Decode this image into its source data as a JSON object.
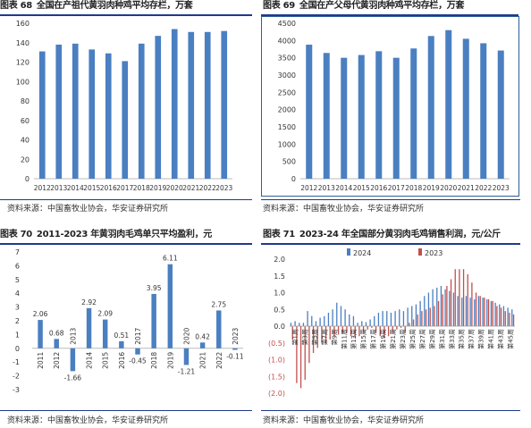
{
  "source_note": "资料来源：中国畜牧业协会，华安证券研究所",
  "chart_data": [
    {
      "id": "fig68",
      "type": "bar",
      "figure_no": "图表 68",
      "title": "全国在产祖代黄羽肉种鸡平均存栏，万套",
      "categories": [
        "2012",
        "2013",
        "2014",
        "2015",
        "2016",
        "2017",
        "2018",
        "2019",
        "2020",
        "2021",
        "2022",
        "2023"
      ],
      "values": [
        131,
        138,
        139,
        133,
        129,
        121,
        139,
        147,
        154,
        151,
        151,
        152
      ],
      "ylim": [
        0,
        160
      ],
      "yticks": [
        0,
        20,
        40,
        60,
        80,
        100,
        120,
        140,
        160
      ],
      "color": "#4a7fc1",
      "grid": false,
      "framed": false
    },
    {
      "id": "fig69",
      "type": "bar",
      "figure_no": "图表 69",
      "title": "全国在产父母代黄羽肉种鸡平均存栏，万套",
      "categories": [
        "2012",
        "2013",
        "2014",
        "2015",
        "2016",
        "2017",
        "2018",
        "2019",
        "2020",
        "2021",
        "2022",
        "2023"
      ],
      "values": [
        3880,
        3640,
        3500,
        3580,
        3690,
        3500,
        3770,
        4130,
        4300,
        4050,
        3920,
        3710
      ],
      "ylim": [
        0,
        4500
      ],
      "yticks": [
        0,
        500,
        1000,
        1500,
        2000,
        2500,
        3000,
        3500,
        4000,
        4500
      ],
      "color": "#4a7fc1",
      "grid": false,
      "framed": true
    },
    {
      "id": "fig70",
      "type": "bar",
      "figure_no": "图表 70",
      "title": "2011-2023 年黄羽肉毛鸡单只平均盈利，元",
      "categories": [
        "2011",
        "2012",
        "2013",
        "2014",
        "2015",
        "2016",
        "2017",
        "2018",
        "2019",
        "2020",
        "2021",
        "2022",
        "2023"
      ],
      "values": [
        2.06,
        0.68,
        -1.66,
        2.92,
        2.09,
        0.51,
        -0.45,
        3.95,
        6.11,
        -1.21,
        0.42,
        2.75,
        -0.11
      ],
      "data_labels": [
        "2.06",
        "0.68",
        "-1.66",
        "2.92",
        "2.09",
        "0.51",
        "-0.45",
        "3.95",
        "6.11",
        "-1.21",
        "0.42",
        "2.75",
        "-0.11"
      ],
      "ylim": [
        -3,
        7
      ],
      "yticks": [
        -3,
        -2,
        -1,
        0,
        1,
        2,
        3,
        4,
        5,
        6,
        7
      ],
      "color": "#4a7fc1",
      "grid": false,
      "framed": false
    },
    {
      "id": "fig71",
      "type": "bar",
      "figure_no": "图表 71",
      "title": "2023-24 年全国部分黄羽肉毛鸡销售利润，元/公斤",
      "x_tick_labels": [
        "第1周",
        "第3周",
        "第5周",
        "第7周",
        "第9周",
        "第11周",
        "第13周",
        "第15周",
        "第17周",
        "第19周",
        "第21周",
        "第23周",
        "第25周",
        "第27周",
        "第29周",
        "第31周",
        "第33周",
        "第35周",
        "第37周",
        "第39周",
        "第41周",
        "第43周",
        "第45周"
      ],
      "ylim": [
        -2.0,
        2.0
      ],
      "yticks": [
        2.0,
        1.5,
        1.0,
        0.5,
        0.0,
        -0.5,
        -1.0,
        -1.5,
        -2.0
      ],
      "ytick_labels": [
        "2.0",
        "1.5",
        "1.0",
        "0.5",
        "0.0",
        "(0.5)",
        "(1.0)",
        "(1.5)",
        "(2.0)"
      ],
      "legend_position": "top",
      "grid": false,
      "framed": false,
      "series": [
        {
          "name": "2024",
          "color": "#4a7fc1",
          "values": [
            0.1,
            0.15,
            0.1,
            0.1,
            0.45,
            0.3,
            0.15,
            0.25,
            0.3,
            0.4,
            0.5,
            0.7,
            0.6,
            0.5,
            0.35,
            0.3,
            0.1,
            0.15,
            0.12,
            0.2,
            0.3,
            0.4,
            0.45,
            0.45,
            0.4,
            0.45,
            0.5,
            0.45,
            0.55,
            0.6,
            0.65,
            0.75,
            0.9,
            1.0,
            1.1,
            1.15,
            1.2,
            1.1,
            1.05,
            1.0,
            0.9,
            0.85,
            0.9,
            0.85,
            0.8,
            0.9,
            0.85,
            0.8,
            0.75,
            0.7,
            0.65,
            0.6,
            0.55,
            0.5
          ]
        },
        {
          "name": "2023",
          "color": "#c0504d",
          "values": [
            -0.4,
            -1.7,
            -1.85,
            -1.6,
            -1.1,
            -0.8,
            -0.65,
            -0.5,
            -0.5,
            -0.4,
            -0.3,
            -0.25,
            -0.2,
            -0.2,
            -0.3,
            -0.35,
            -0.3,
            -0.2,
            -0.1,
            -0.05,
            -0.2,
            -0.3,
            -0.35,
            -0.3,
            -0.2,
            -0.1,
            -0.05,
            -0.2,
            0.1,
            0.2,
            0.35,
            0.45,
            0.5,
            0.55,
            0.6,
            0.75,
            0.95,
            1.2,
            1.4,
            1.7,
            1.7,
            1.7,
            1.55,
            1.3,
            1.0,
            0.9,
            0.85,
            0.8,
            0.75,
            0.6,
            0.55,
            0.45,
            0.4,
            0.35
          ]
        }
      ]
    }
  ]
}
